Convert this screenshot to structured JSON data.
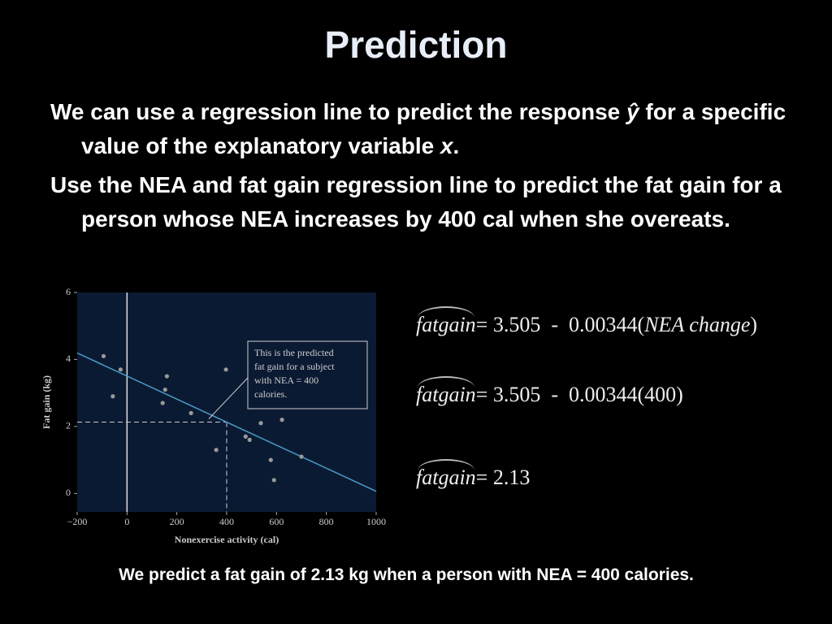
{
  "title": "Prediction",
  "bullets": [
    {
      "parts": [
        "We can use a regression line to predict the response ",
        "ŷ",
        " for a specific value of the explanatory variable ",
        "x",
        "."
      ]
    },
    {
      "parts": [
        "Use the NEA and fat gain regression line to predict the fat gain for a person whose NEA increases by 400 cal when she overeats."
      ]
    }
  ],
  "equations": [
    {
      "lhs": "fatgain",
      "rhs": "= 3.505  -  0.00344(",
      "italic": "NEA change",
      "end": ")"
    },
    {
      "lhs": "fatgain",
      "rhs": "= 3.505  -  0.00344(400)"
    },
    {
      "lhs": "fatgain",
      "rhs": "= 2.13"
    }
  ],
  "footer": "We predict a fat gain of 2.13 kg when a person with NEA = 400 calories.",
  "chart_data": {
    "type": "scatter",
    "x_label": "Nonexercise activity (cal)",
    "y_label": "Fat gain (kg)",
    "x": [
      -94,
      -26,
      -57,
      160,
      153,
      143,
      257,
      397,
      358,
      476,
      492,
      537,
      622,
      577,
      590,
      700
    ],
    "values": [
      4.1,
      3.7,
      2.9,
      3.5,
      3.1,
      2.7,
      2.4,
      3.7,
      1.3,
      1.7,
      1.6,
      2.1,
      2.2,
      1.0,
      0.4,
      1.1
    ],
    "color": "#9a9a9a",
    "xlim": [
      -200,
      1000
    ],
    "ylim": [
      -0.55,
      6
    ],
    "xticks": [
      {
        "value": -200,
        "label": "−200"
      },
      0,
      200,
      400,
      600,
      800,
      1000
    ],
    "yticks": [
      0,
      2,
      4,
      6
    ],
    "regression": {
      "intercept": 3.505,
      "slope": -0.00344,
      "color": "#4a9bc4"
    },
    "prediction": {
      "x": 400,
      "y": 2.13
    },
    "annotation": [
      "This is the predicted",
      "fat gain for a subject",
      "with NEA = 400",
      "calories."
    ]
  }
}
